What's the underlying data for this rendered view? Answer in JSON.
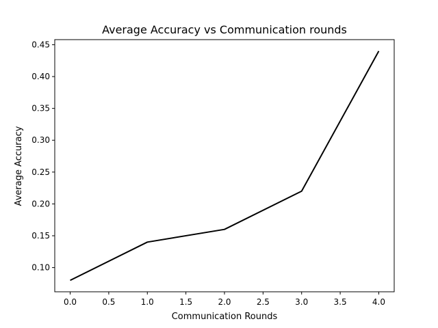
{
  "chart_data": {
    "type": "line",
    "title": "Average Accuracy vs Communication rounds",
    "xlabel": "Communication Rounds",
    "ylabel": "Average Accuracy",
    "xlim": [
      -0.2,
      4.2
    ],
    "ylim": [
      0.062,
      0.458
    ],
    "x_ticks": [
      0.0,
      0.5,
      1.0,
      1.5,
      2.0,
      2.5,
      3.0,
      3.5,
      4.0
    ],
    "x_tick_labels": [
      "0.0",
      "0.5",
      "1.0",
      "1.5",
      "2.0",
      "2.5",
      "3.0",
      "3.5",
      "4.0"
    ],
    "y_ticks": [
      0.1,
      0.15,
      0.2,
      0.25,
      0.3,
      0.35,
      0.4,
      0.45
    ],
    "y_tick_labels": [
      "0.10",
      "0.15",
      "0.20",
      "0.25",
      "0.30",
      "0.35",
      "0.40",
      "0.45"
    ],
    "grid": false,
    "series": [
      {
        "x": [
          0,
          1,
          2,
          3,
          4
        ],
        "values": [
          0.08,
          0.14,
          0.16,
          0.22,
          0.44
        ],
        "color": "#000000"
      }
    ]
  }
}
